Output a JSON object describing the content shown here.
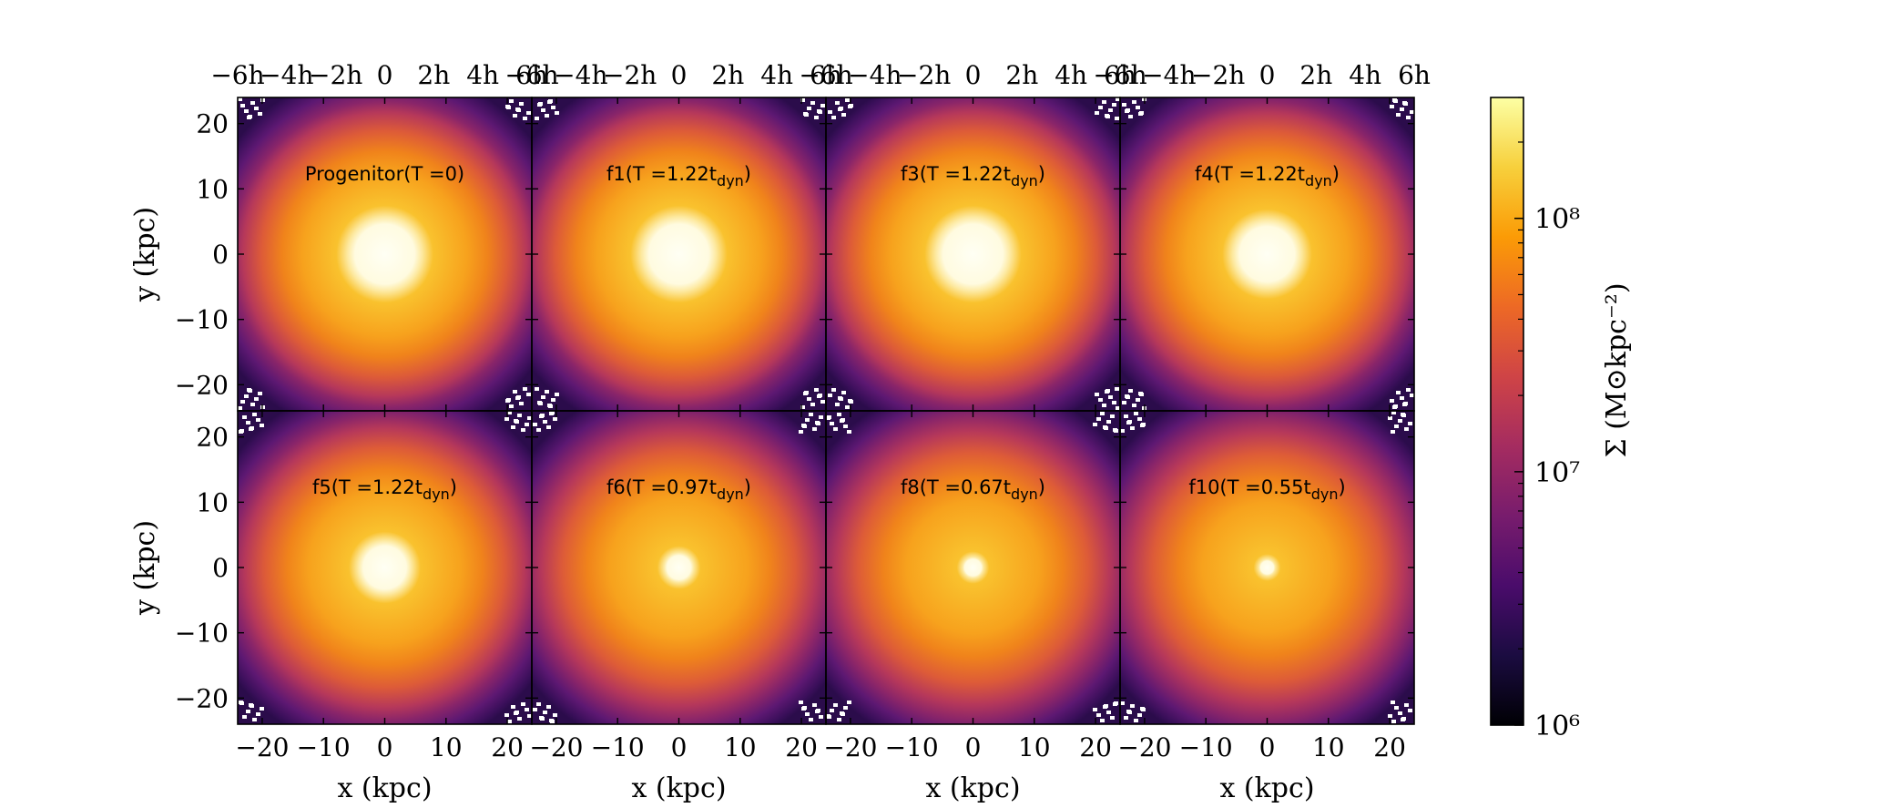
{
  "chart_data": {
    "type": "heatmap",
    "grid": {
      "rows": 2,
      "cols": 4
    },
    "panels": [
      {
        "label": "Progenitor",
        "time": "T =0",
        "time_sub": "",
        "core": 1.0
      },
      {
        "label": "f1",
        "time": "T =1.22t",
        "time_sub": "dyn",
        "core": 1.0
      },
      {
        "label": "f3",
        "time": "T =1.22t",
        "time_sub": "dyn",
        "core": 1.0
      },
      {
        "label": "f4",
        "time": "T =1.22t",
        "time_sub": "dyn",
        "core": 0.92
      },
      {
        "label": "f5",
        "time": "T =1.22t",
        "time_sub": "dyn",
        "core": 0.72
      },
      {
        "label": "f6",
        "time": "T =0.97t",
        "time_sub": "dyn",
        "core": 0.4
      },
      {
        "label": "f8",
        "time": "T =0.67t",
        "time_sub": "dyn",
        "core": 0.28
      },
      {
        "label": "f10",
        "time": "T =0.55t",
        "time_sub": "dyn",
        "core": 0.22
      }
    ],
    "xlabel": "x (kpc)",
    "ylabel": "y (kpc)",
    "xlim": [
      -24,
      24
    ],
    "ylim": [
      -24,
      24
    ],
    "x_ticks": [
      -20,
      -10,
      0,
      10,
      20
    ],
    "x_tick_labels": [
      "−20",
      "−10",
      "0",
      "10",
      "20"
    ],
    "y_ticks": [
      20,
      10,
      0,
      -10,
      -20
    ],
    "y_tick_labels": [
      "20",
      "10",
      "0",
      "−10",
      "−20"
    ],
    "top_ticks": [
      -24,
      -16,
      -8,
      0,
      8,
      16,
      24
    ],
    "top_tick_labels": [
      "−6h",
      "−4h",
      "−2h",
      "0",
      "2h",
      "4h",
      "6h"
    ],
    "colorbar": {
      "label": "Σ (M⊙kpc⁻²)",
      "scale": "log",
      "range": [
        1000000,
        300000000
      ],
      "tick_values": [
        1000000,
        10000000,
        100000000
      ],
      "tick_labels": [
        "10⁶",
        "10⁷",
        "10⁸"
      ],
      "colormap": "inferno"
    }
  }
}
